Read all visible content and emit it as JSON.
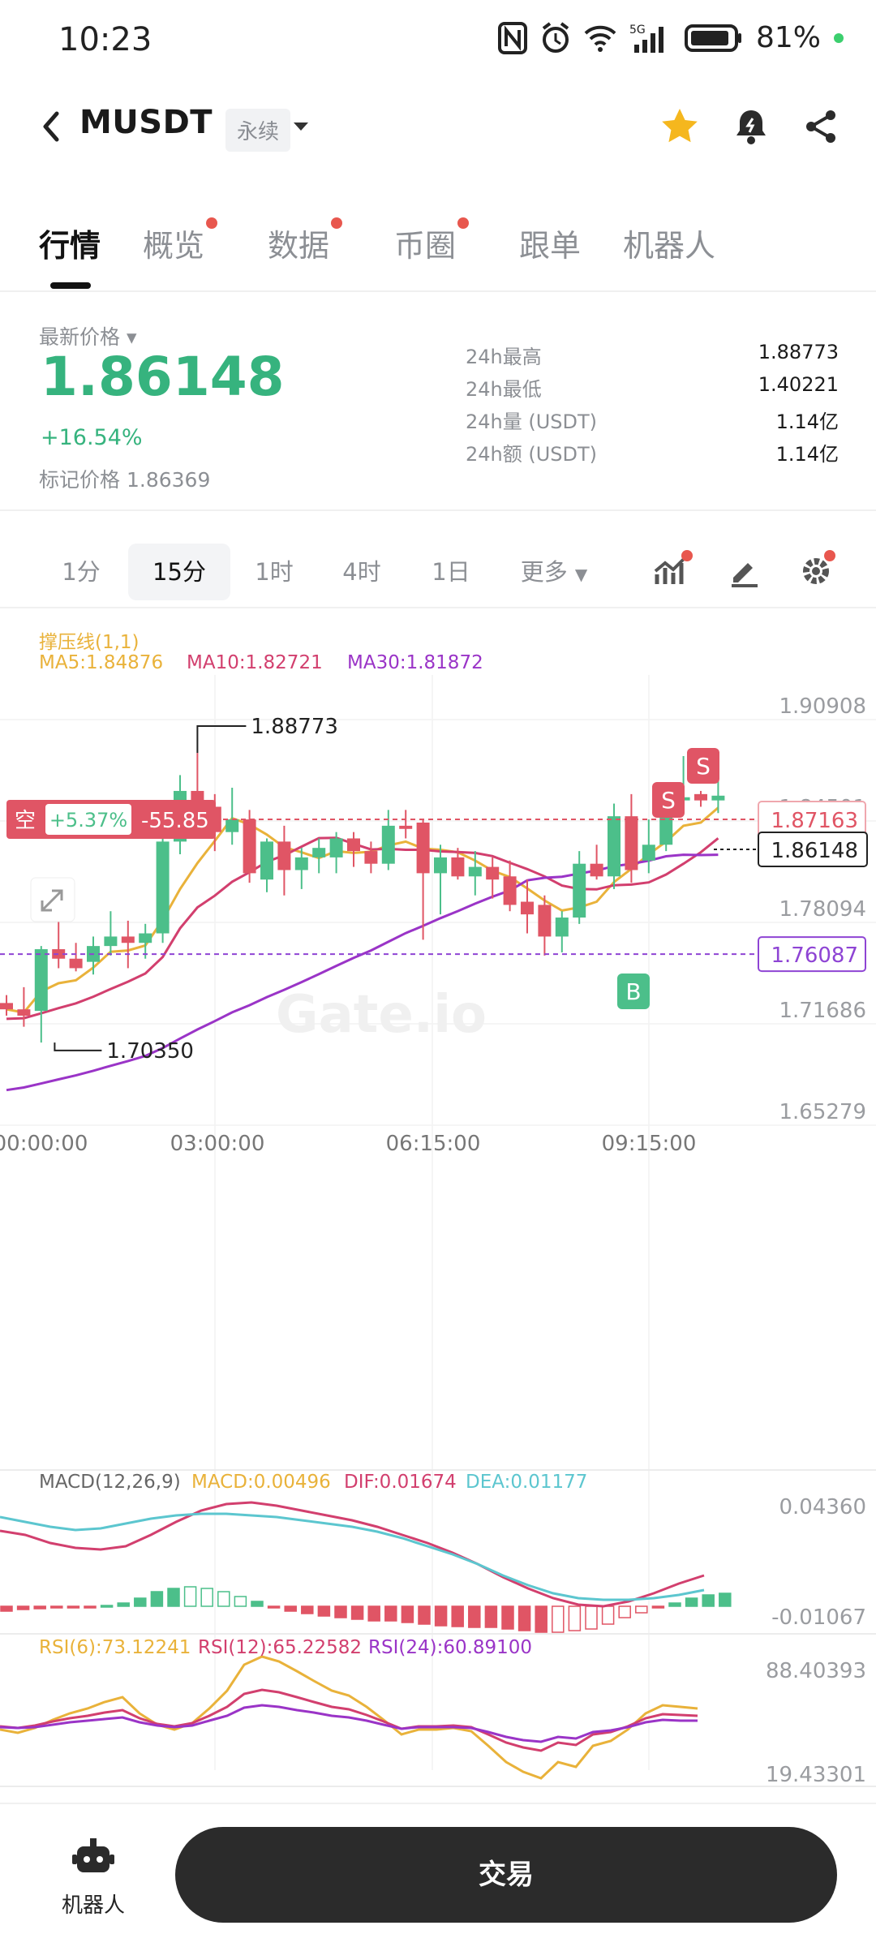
{
  "status_bar": {
    "time": "10:23",
    "battery": "81%",
    "network": "5G"
  },
  "header": {
    "back_icon": "chevron-left-icon",
    "symbol": "MUSDT",
    "contract_type": "永续",
    "favorite_icon": "star-icon",
    "alert_icon": "bell-icon",
    "share_icon": "share-icon",
    "accent_star": "#f5b71e"
  },
  "tabs": [
    {
      "label": "行情",
      "active": true,
      "dot": false
    },
    {
      "label": "概览",
      "active": false,
      "dot": true
    },
    {
      "label": "数据",
      "active": false,
      "dot": true
    },
    {
      "label": "币圈",
      "active": false,
      "dot": true
    },
    {
      "label": "跟单",
      "active": false,
      "dot": false
    },
    {
      "label": "机器人",
      "active": false,
      "dot": false
    }
  ],
  "price": {
    "label": "最新价格",
    "last": "1.86148",
    "change": "+16.54%",
    "mark_label": "标记价格",
    "mark_value": "1.86369",
    "color_up": "#36b37e",
    "stats": [
      {
        "label": "24h最高",
        "value": "1.88773"
      },
      {
        "label": "24h最低",
        "value": "1.40221"
      },
      {
        "label": "24h量 (USDT)",
        "value": "1.14亿"
      },
      {
        "label": "24h额 (USDT)",
        "value": "1.14亿"
      }
    ]
  },
  "intervals": {
    "items": [
      "1分",
      "15分",
      "1时",
      "4时",
      "1日",
      "更多"
    ],
    "active": "15分",
    "icons": [
      "indicator-icon",
      "draw-pen-icon",
      "settings-gear-icon"
    ]
  },
  "chart_data": {
    "type": "candlestick",
    "overlay_title": "撑压线(1,1)",
    "ma_labels": {
      "ma5": "MA5:1.84876",
      "ma10": "MA10:1.82721",
      "ma30": "MA30:1.81872"
    },
    "y_ticks": [
      "1.90908",
      "1.84501",
      "1.78094",
      "1.71686",
      "1.65279"
    ],
    "y_tick_values": [
      1.90908,
      1.84501,
      1.78094,
      1.71686,
      1.65279
    ],
    "x_ticks": [
      "00:00:00",
      "03:00:00",
      "06:15:00",
      "09:15:00"
    ],
    "high_label": "1.88773",
    "low_label": "1.70350",
    "current_price_tag": "1.86148",
    "position_line_tag": "1.87163",
    "support_line_tag": "1.76087",
    "position_badge": {
      "side": "空",
      "pnl_pct": "+5.37%",
      "pnl": "-55.85"
    },
    "signals": [
      "S",
      "S",
      "B"
    ],
    "watermark": "Gate.io",
    "candles": [
      [
        1.73,
        1.735,
        1.722,
        1.726
      ],
      [
        1.726,
        1.74,
        1.715,
        1.722
      ],
      [
        1.725,
        1.766,
        1.705,
        1.764
      ],
      [
        1.764,
        1.79,
        1.752,
        1.758
      ],
      [
        1.758,
        1.768,
        1.75,
        1.752
      ],
      [
        1.756,
        1.772,
        1.748,
        1.766
      ],
      [
        1.766,
        1.788,
        1.76,
        1.772
      ],
      [
        1.772,
        1.782,
        1.752,
        1.768
      ],
      [
        1.768,
        1.78,
        1.758,
        1.774
      ],
      [
        1.774,
        1.84,
        1.768,
        1.832
      ],
      [
        1.832,
        1.874,
        1.824,
        1.864
      ],
      [
        1.864,
        1.888,
        1.852,
        1.854
      ],
      [
        1.854,
        1.862,
        1.826,
        1.838
      ],
      [
        1.838,
        1.866,
        1.83,
        1.846
      ],
      [
        1.846,
        1.852,
        1.806,
        1.812
      ],
      [
        1.808,
        1.834,
        1.8,
        1.832
      ],
      [
        1.832,
        1.842,
        1.798,
        1.814
      ],
      [
        1.814,
        1.828,
        1.802,
        1.822
      ],
      [
        1.822,
        1.834,
        1.812,
        1.828
      ],
      [
        1.822,
        1.838,
        1.812,
        1.834
      ],
      [
        1.834,
        1.838,
        1.816,
        1.826
      ],
      [
        1.826,
        1.832,
        1.812,
        1.818
      ],
      [
        1.818,
        1.852,
        1.814,
        1.842
      ],
      [
        1.842,
        1.852,
        1.834,
        1.84
      ],
      [
        1.844,
        1.846,
        1.77,
        1.812
      ],
      [
        1.812,
        1.83,
        1.786,
        1.822
      ],
      [
        1.822,
        1.828,
        1.808,
        1.81
      ],
      [
        1.81,
        1.826,
        1.798,
        1.816
      ],
      [
        1.816,
        1.822,
        1.796,
        1.808
      ],
      [
        1.81,
        1.82,
        1.788,
        1.792
      ],
      [
        1.794,
        1.808,
        1.774,
        1.786
      ],
      [
        1.792,
        1.798,
        1.76,
        1.772
      ],
      [
        1.772,
        1.788,
        1.762,
        1.784
      ],
      [
        1.784,
        1.826,
        1.78,
        1.818
      ],
      [
        1.818,
        1.83,
        1.808,
        1.81
      ],
      [
        1.81,
        1.856,
        1.802,
        1.848
      ],
      [
        1.848,
        1.862,
        1.806,
        1.814
      ],
      [
        1.82,
        1.846,
        1.812,
        1.83
      ],
      [
        1.83,
        1.864,
        1.826,
        1.858
      ],
      [
        1.858,
        1.886,
        1.85,
        1.86
      ],
      [
        1.862,
        1.864,
        1.854,
        1.858
      ],
      [
        1.858,
        1.888,
        1.85,
        1.861
      ]
    ],
    "macd": {
      "title": "MACD(12,26,9)",
      "macd": "MACD:0.00496",
      "dif": "DIF:0.01674",
      "dea": "DEA:0.01177",
      "y_ticks": [
        "0.04360",
        "-0.01067"
      ]
    },
    "rsi": {
      "title": "RSI(6):73.12241",
      "rsi12": "RSI(12):65.22582",
      "rsi24": "RSI(24):60.89100",
      "y_ticks": [
        "88.40393",
        "19.43301"
      ]
    },
    "colors": {
      "up": "#4cbf8a",
      "down": "#e05565",
      "ma5": "#e9b23a",
      "ma10": "#d23f6e",
      "ma30": "#9a34c7",
      "dea": "#5cc6cf",
      "support": "#8e44d4"
    }
  },
  "bottom_bar": {
    "robot_label": "机器人",
    "robot_icon": "robot-icon",
    "trade_label": "交易"
  }
}
